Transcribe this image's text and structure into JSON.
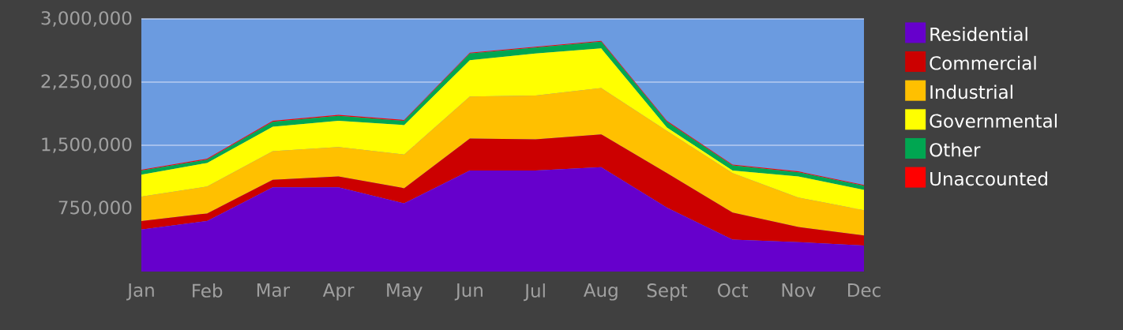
{
  "chart_data": {
    "type": "area",
    "stacked": true,
    "grid": "y",
    "legend": "right",
    "categories": [
      "Jan",
      "Feb",
      "Mar",
      "Apr",
      "May",
      "Jun",
      "Jul",
      "Aug",
      "Sept",
      "Oct",
      "Nov",
      "Dec"
    ],
    "ylim": [
      0,
      3000000
    ],
    "yticks": [
      {
        "value": 750000,
        "label": "750,000"
      },
      {
        "value": 1500000,
        "label": "1,500,000"
      },
      {
        "value": 2250000,
        "label": "2,250,000"
      },
      {
        "value": 3000000,
        "label": "3,000,000"
      }
    ],
    "series": [
      {
        "name": "Residential",
        "color": "#6600cc",
        "values": [
          500000,
          600000,
          1000000,
          1000000,
          810000,
          1200000,
          1200000,
          1240000,
          760000,
          380000,
          350000,
          310000
        ]
      },
      {
        "name": "Commercial",
        "color": "#cc0000",
        "values": [
          100000,
          90000,
          90000,
          130000,
          180000,
          380000,
          370000,
          390000,
          410000,
          320000,
          180000,
          120000
        ]
      },
      {
        "name": "Industrial",
        "color": "#ffc000",
        "values": [
          290000,
          320000,
          340000,
          350000,
          400000,
          500000,
          520000,
          550000,
          500000,
          470000,
          350000,
          300000
        ]
      },
      {
        "name": "Governmental",
        "color": "#ffff00",
        "values": [
          260000,
          280000,
          290000,
          310000,
          350000,
          430000,
          500000,
          470000,
          40000,
          30000,
          250000,
          240000
        ]
      },
      {
        "name": "Other",
        "color": "#00a651",
        "values": [
          50000,
          40000,
          60000,
          60000,
          50000,
          80000,
          70000,
          80000,
          70000,
          60000,
          50000,
          50000
        ]
      },
      {
        "name": "Unaccounted",
        "color": "#ff0000",
        "values": [
          10000,
          10000,
          10000,
          10000,
          10000,
          10000,
          10000,
          10000,
          10000,
          10000,
          10000,
          10000
        ]
      }
    ]
  }
}
